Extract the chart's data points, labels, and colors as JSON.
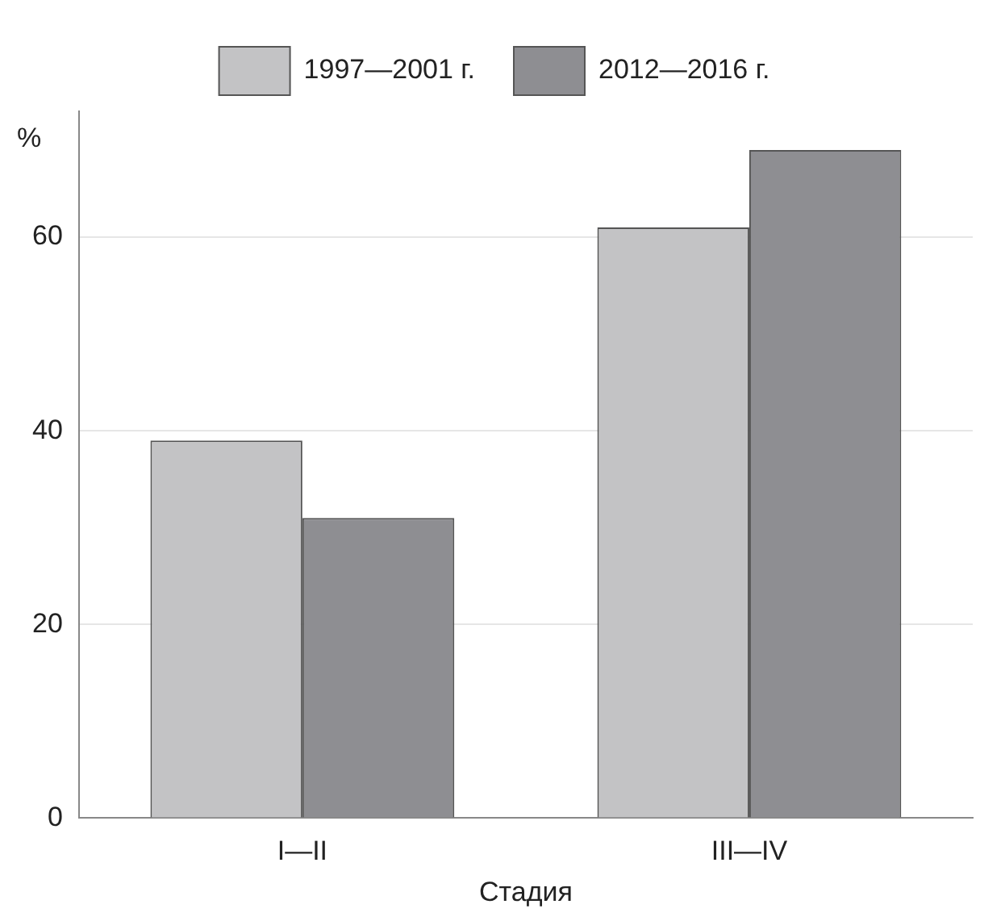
{
  "chart_data": {
    "type": "bar",
    "xlabel": "Стадия",
    "ylabel": "%",
    "categories": [
      "I—II",
      "III—IV"
    ],
    "series": [
      {
        "name": "1997—2001 г.",
        "color": "#c3c3c5",
        "values": [
          39,
          61
        ]
      },
      {
        "name": "2012—2016 г.",
        "color": "#8e8e92",
        "values": [
          31,
          69
        ]
      }
    ],
    "ylim": [
      0,
      73
    ],
    "yticks": [
      0,
      20,
      40,
      60
    ],
    "grid": "y",
    "legend": "top"
  }
}
